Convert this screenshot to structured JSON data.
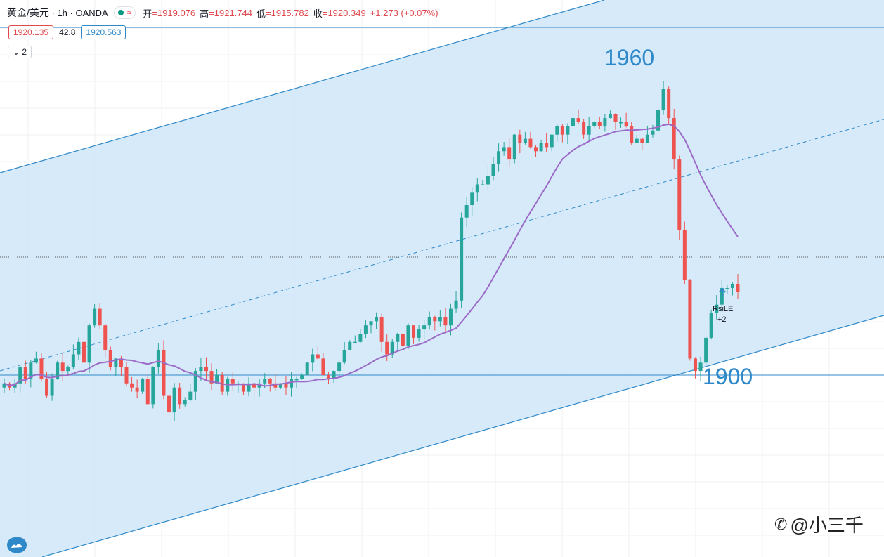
{
  "header": {
    "symbol": "黄金/美元",
    "interval": "1h",
    "broker": "OANDA",
    "open_label": "开",
    "open_value": "=1919.076",
    "high_label": "高",
    "high_value": "=1921.744",
    "low_label": "低",
    "low_value": "=1915.782",
    "close_label": "收",
    "close_value": "=1920.349",
    "change": "+1.273 (+0.07%)"
  },
  "quote": {
    "sell": "1920.135",
    "spread": "42.8",
    "buy": "1920.563"
  },
  "indicator_toggle": "2",
  "watermark": "@小三千",
  "chart_data": {
    "type": "candlestick",
    "annotations": [
      {
        "text": "1960",
        "color": "#2f89c9"
      },
      {
        "text": "1900",
        "color": "#2f89c9"
      },
      {
        "text": "RsiLE",
        "color": "#131722"
      },
      {
        "text": "+2",
        "color": "#131722"
      }
    ],
    "levels": [
      {
        "price": 1966,
        "label": ""
      },
      {
        "price": 1900,
        "label": "1900"
      }
    ],
    "current_price": 1920.349,
    "ylim": [
      1872,
      1970
    ],
    "channel": {
      "fill": "#cfe6f9",
      "line": "#2f89c9"
    },
    "colors": {
      "up": "#26a69a",
      "down": "#ef5350",
      "ma": "#9b6bc7"
    },
    "candles": [
      1898,
      1897,
      1898,
      1902,
      1899,
      1903,
      1904,
      1899,
      1895,
      1899,
      1903,
      1901,
      1902,
      1905,
      1908,
      1903,
      1912,
      1916,
      1912,
      1906,
      1902,
      1904,
      1902,
      1898,
      1897,
      1896,
      1899,
      1893,
      1902,
      1906,
      1895,
      1891,
      1897,
      1893,
      1894,
      1896,
      1901,
      1902,
      1901,
      1898,
      1900,
      1896,
      1899,
      1898,
      1898,
      1896,
      1898,
      1897,
      1898,
      1899,
      1898,
      1897,
      1898,
      1897,
      1899,
      1899,
      1900,
      1903,
      1905,
      1904,
      1900,
      1899,
      1901,
      1903,
      1906,
      1908,
      1908,
      1910,
      1912,
      1913,
      1914,
      1908,
      1905,
      1908,
      1910,
      1907,
      1912,
      1909,
      1911,
      1912,
      1914,
      1913,
      1914,
      1912,
      1916,
      1918,
      1938,
      1941,
      1944,
      1946,
      1946,
      1948,
      1951,
      1954,
      1955,
      1952,
      1958,
      1956,
      1957,
      1955,
      1954,
      1956,
      1955,
      1958,
      1960,
      1958,
      1960,
      1962,
      1961,
      1958,
      1960,
      1961,
      1960,
      1962,
      1963,
      1961,
      1961,
      1960,
      1956,
      1957,
      1956,
      1958,
      1959,
      1964,
      1969,
      1962,
      1952,
      1935,
      1923,
      1904,
      1901,
      1903,
      1909,
      1915,
      1917,
      1921,
      1921,
      1922,
      1920
    ],
    "ma_note": "purple moving average"
  }
}
